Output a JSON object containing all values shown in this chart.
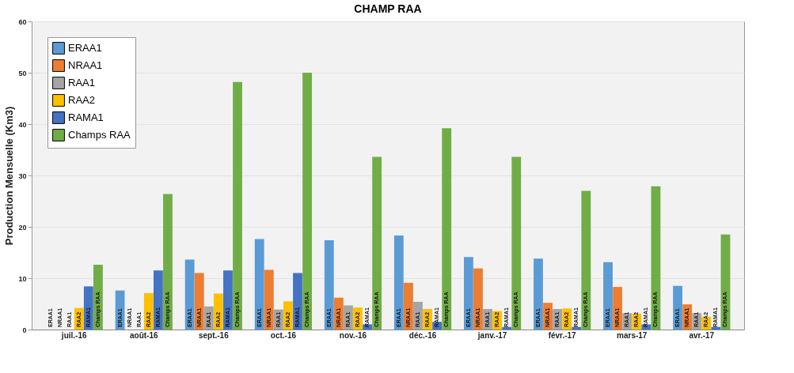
{
  "chart_data": {
    "type": "bar",
    "title": "CHAMP RAA",
    "ylabel": "Production Mensuelle (Km3)",
    "categories": [
      "juil.-16",
      "août-16",
      "sept.-16",
      "oct.-16",
      "nov.-16",
      "déc.-16",
      "janv.-17",
      "févr.-17",
      "mars-17",
      "avr.-17"
    ],
    "series": [
      {
        "name": "ERAA1",
        "color": "#5b9bd5",
        "values": [
          0,
          7.6,
          13.6,
          17.6,
          17.4,
          18.3,
          14.1,
          13.8,
          13.1,
          8.5
        ]
      },
      {
        "name": "NRAA1",
        "color": "#ed7d31",
        "values": [
          0,
          0,
          11.0,
          11.6,
          6.2,
          9.1,
          11.9,
          5.2,
          8.3,
          4.9
        ]
      },
      {
        "name": "RAA1",
        "color": "#a5a5a5",
        "values": [
          0,
          0,
          4.5,
          3.9,
          4.7,
          5.4,
          4.0,
          4.0,
          3.2,
          3.2
        ]
      },
      {
        "name": "RAA2",
        "color": "#ffc000",
        "values": [
          4.2,
          7.1,
          7.0,
          5.5,
          4.3,
          4.0,
          3.6,
          4.1,
          3.1,
          2.5
        ]
      },
      {
        "name": "RAMA1",
        "color": "#4472c4",
        "values": [
          8.4,
          11.5,
          11.5,
          11.0,
          1.0,
          1.5,
          0.5,
          0.5,
          1.0,
          0.5
        ]
      },
      {
        "name": "Champs RAA",
        "color": "#70ad47",
        "values": [
          12.6,
          26.4,
          48.2,
          50.0,
          33.6,
          39.2,
          33.6,
          27.0,
          27.9,
          18.5
        ]
      }
    ],
    "ylim": [
      0,
      60
    ],
    "yticks": [
      0,
      10,
      20,
      30,
      40,
      50,
      60
    ],
    "grid": "y",
    "legend": "top left"
  }
}
